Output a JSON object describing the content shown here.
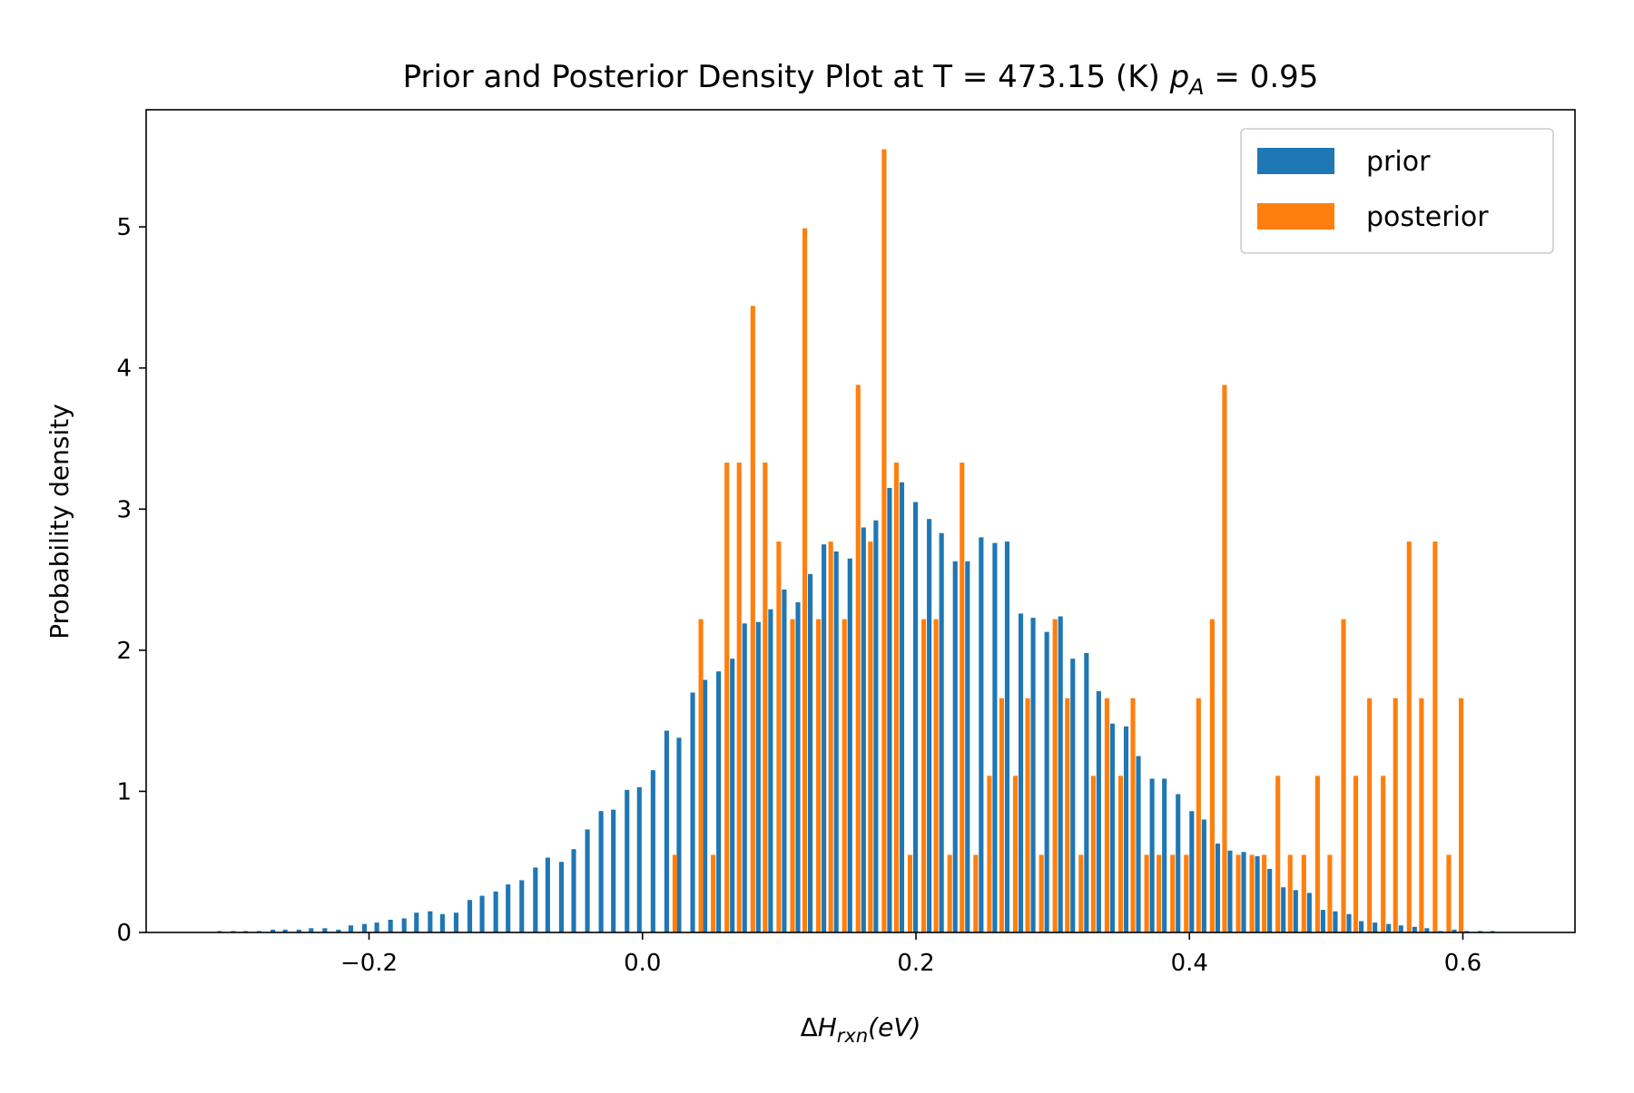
{
  "chart_data": {
    "type": "bar",
    "title": "Prior and Posterior Density Plot at T = 473.15 (K)",
    "title_math": {
      "var": "p",
      "sub": "A",
      "rest": " = 0.95"
    },
    "xlabel": {
      "prefix": "Δ",
      "var": "H",
      "sub": "rxn",
      "rest": "(eV)"
    },
    "ylabel": "Probability density",
    "xlim": [
      -0.363,
      0.682
    ],
    "ylim": [
      0,
      5.83
    ],
    "xticks": [
      {
        "value": -0.2,
        "label": "−0.2"
      },
      {
        "value": 0.0,
        "label": "0.0"
      },
      {
        "value": 0.2,
        "label": "0.2"
      },
      {
        "value": 0.4,
        "label": "0.4"
      },
      {
        "value": 0.6,
        "label": "0.6"
      }
    ],
    "yticks": [
      {
        "value": 0,
        "label": "0"
      },
      {
        "value": 1,
        "label": "1"
      },
      {
        "value": 2,
        "label": "2"
      },
      {
        "value": 3,
        "label": "3"
      },
      {
        "value": 4,
        "label": "4"
      },
      {
        "value": 5,
        "label": "5"
      }
    ],
    "grid": false,
    "legend_position": "top-right",
    "series": [
      {
        "name": "prior",
        "color": "#1f77b4",
        "bin_width": 0.0096,
        "bar_width": 0.0034,
        "x": [
          -0.311,
          -0.301,
          -0.292,
          -0.282,
          -0.272,
          -0.263,
          -0.253,
          -0.244,
          -0.234,
          -0.224,
          -0.215,
          -0.205,
          -0.196,
          -0.186,
          -0.176,
          -0.167,
          -0.157,
          -0.148,
          -0.138,
          -0.128,
          -0.119,
          -0.109,
          -0.1,
          -0.09,
          -0.08,
          -0.071,
          -0.061,
          -0.052,
          -0.042,
          -0.032,
          -0.023,
          -0.013,
          -0.004,
          0.006,
          0.016,
          0.025,
          0.035,
          0.044,
          0.054,
          0.064,
          0.073,
          0.083,
          0.092,
          0.102,
          0.112,
          0.121,
          0.131,
          0.14,
          0.15,
          0.16,
          0.169,
          0.179,
          0.188,
          0.198,
          0.208,
          0.217,
          0.227,
          0.236,
          0.246,
          0.256,
          0.265,
          0.275,
          0.284,
          0.294,
          0.304,
          0.313,
          0.323,
          0.332,
          0.342,
          0.352,
          0.361,
          0.371,
          0.38,
          0.39,
          0.4,
          0.409,
          0.419,
          0.428,
          0.438,
          0.448,
          0.457,
          0.467,
          0.476,
          0.486,
          0.496,
          0.505,
          0.515,
          0.524,
          0.534,
          0.544,
          0.553,
          0.563,
          0.572,
          0.582,
          0.592,
          0.601,
          0.611,
          0.62
        ],
        "values": [
          0.01,
          0.01,
          0.01,
          0.01,
          0.02,
          0.02,
          0.02,
          0.03,
          0.03,
          0.02,
          0.05,
          0.06,
          0.07,
          0.09,
          0.1,
          0.14,
          0.15,
          0.13,
          0.14,
          0.23,
          0.26,
          0.29,
          0.34,
          0.37,
          0.46,
          0.53,
          0.5,
          0.59,
          0.73,
          0.86,
          0.87,
          1.01,
          1.03,
          1.15,
          1.43,
          1.38,
          1.7,
          1.79,
          1.85,
          1.94,
          2.19,
          2.2,
          2.29,
          2.43,
          2.34,
          2.54,
          2.75,
          2.7,
          2.65,
          2.87,
          2.92,
          3.15,
          3.19,
          3.05,
          2.93,
          2.83,
          2.63,
          2.63,
          2.8,
          2.76,
          2.77,
          2.26,
          2.23,
          2.13,
          2.24,
          1.94,
          1.98,
          1.71,
          1.48,
          1.46,
          1.25,
          1.09,
          1.09,
          0.98,
          0.86,
          0.8,
          0.63,
          0.58,
          0.57,
          0.54,
          0.45,
          0.32,
          0.3,
          0.28,
          0.16,
          0.15,
          0.13,
          0.08,
          0.07,
          0.06,
          0.05,
          0.04,
          0.03,
          0.01,
          0.02,
          0.01,
          0.01,
          0.01
        ]
      },
      {
        "name": "posterior",
        "color": "#ff7f0e",
        "bin_width": 0.0192,
        "bar_width": 0.0034,
        "x": [
          0.022,
          0.041,
          0.05,
          0.06,
          0.069,
          0.079,
          0.088,
          0.098,
          0.108,
          0.117,
          0.127,
          0.136,
          0.146,
          0.156,
          0.165,
          0.175,
          0.184,
          0.194,
          0.204,
          0.213,
          0.223,
          0.232,
          0.242,
          0.252,
          0.261,
          0.271,
          0.28,
          0.29,
          0.3,
          0.309,
          0.319,
          0.328,
          0.338,
          0.348,
          0.357,
          0.367,
          0.376,
          0.386,
          0.396,
          0.405,
          0.415,
          0.424,
          0.434,
          0.444,
          0.453,
          0.463,
          0.472,
          0.482,
          0.492,
          0.501,
          0.511,
          0.52,
          0.53,
          0.54,
          0.549,
          0.559,
          0.568,
          0.578,
          0.588,
          0.597
        ],
        "values": [
          0.55,
          2.22,
          0.55,
          3.33,
          3.33,
          4.44,
          3.33,
          2.77,
          2.22,
          4.99,
          2.22,
          2.77,
          2.22,
          3.88,
          2.77,
          5.55,
          3.33,
          0.55,
          2.22,
          2.22,
          0.55,
          3.33,
          0.55,
          1.11,
          1.66,
          1.11,
          1.66,
          0.55,
          2.22,
          1.66,
          0.55,
          1.11,
          1.66,
          1.11,
          1.66,
          0.55,
          0.55,
          0.55,
          0.55,
          1.66,
          2.22,
          3.88,
          0.55,
          0.55,
          0.55,
          1.11,
          0.55,
          0.55,
          1.11,
          0.55,
          2.22,
          1.11,
          1.66,
          1.11,
          1.66,
          2.77,
          1.66,
          2.77,
          0.55,
          1.66
        ]
      }
    ]
  }
}
